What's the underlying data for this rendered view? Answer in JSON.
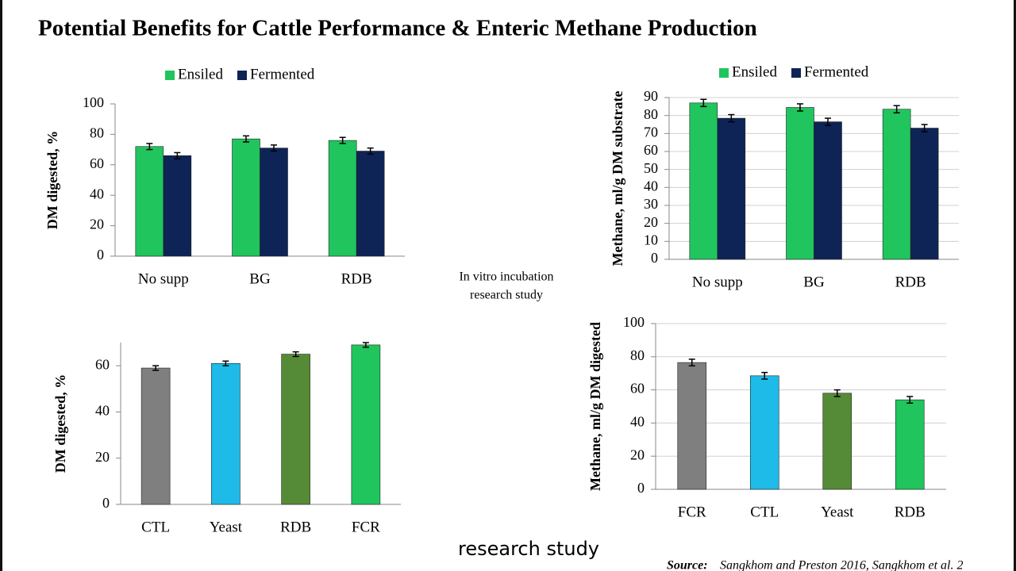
{
  "title": "Potential Benefits for Cattle Performance & Enteric Methane Production",
  "center_note": [
    "In vitro incubation",
    "research study"
  ],
  "caption": "research study",
  "source_label": "Source:",
  "source_text": "Sangkhom and Preston 2016, Sangkhom et al. 2",
  "chart_data": [
    {
      "type": "bar",
      "ylabel": "DM digested, %",
      "categories": [
        "No supp",
        "BG",
        "RDB"
      ],
      "series": [
        {
          "name": "Ensiled",
          "color": "#21c55d",
          "values": [
            72,
            77,
            76
          ],
          "errors": [
            2,
            2,
            2
          ]
        },
        {
          "name": "Fermented",
          "color": "#0e2456",
          "values": [
            66,
            71,
            69
          ],
          "errors": [
            2,
            2,
            2
          ]
        }
      ],
      "ylim": [
        0,
        100
      ],
      "yticks": [
        0,
        20,
        40,
        60,
        80,
        100
      ],
      "grid": false,
      "legend": "top"
    },
    {
      "type": "bar",
      "ylabel": "Methane, ml/g DM substrate",
      "categories": [
        "No supp",
        "BG",
        "RDB"
      ],
      "series": [
        {
          "name": "Ensiled",
          "color": "#21c55d",
          "values": [
            87,
            84.5,
            83.5
          ],
          "errors": [
            2,
            2,
            2
          ]
        },
        {
          "name": "Fermented",
          "color": "#0e2456",
          "values": [
            78.5,
            76.5,
            73
          ],
          "errors": [
            2,
            2,
            2
          ]
        }
      ],
      "ylim": [
        0,
        90
      ],
      "yticks": [
        0,
        10,
        20,
        30,
        40,
        50,
        60,
        70,
        80,
        90
      ],
      "grid": true,
      "legend": "top"
    },
    {
      "type": "bar",
      "ylabel": "DM digested, %",
      "categories": [
        "CTL",
        "Yeast",
        "RDB",
        "FCR"
      ],
      "values": [
        59,
        61,
        65,
        69
      ],
      "errors": [
        1,
        1,
        1,
        1
      ],
      "colors": [
        "#7f7f7f",
        "#1ebbe8",
        "#558b36",
        "#21c55d"
      ],
      "ylim": [
        0,
        70
      ],
      "yticks": [
        0,
        20,
        40,
        60
      ],
      "grid": false
    },
    {
      "type": "bar",
      "ylabel": "Methane, ml/g DM digested",
      "categories": [
        "FCR",
        "CTL",
        "Yeast",
        "RDB"
      ],
      "values": [
        76.5,
        68.5,
        58,
        54
      ],
      "errors": [
        2,
        2,
        2,
        2
      ],
      "colors": [
        "#7f7f7f",
        "#1ebbe8",
        "#558b36",
        "#21c55d"
      ],
      "ylim": [
        0,
        100
      ],
      "yticks": [
        0,
        20,
        40,
        60,
        80,
        100
      ],
      "grid": true
    }
  ]
}
